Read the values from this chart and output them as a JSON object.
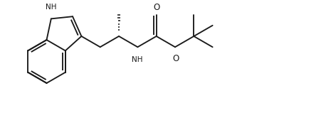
{
  "bg_color": "#ffffff",
  "line_color": "#1a1a1a",
  "lw": 1.35,
  "figsize": [
    4.51,
    1.73
  ],
  "dpi": 100,
  "xlim": [
    0,
    10
  ],
  "ylim": [
    0,
    3.84
  ],
  "bl": 0.68
}
